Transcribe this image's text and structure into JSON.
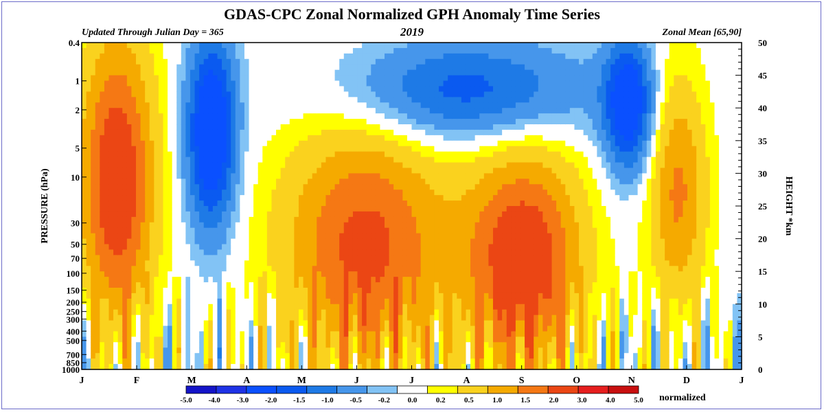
{
  "chart_data": {
    "type": "heatmap",
    "title": "GDAS-CPC Zonal Normalized GPH Anomaly Time Series",
    "subtitle_left": "Updated Through Julian Day = 365",
    "subtitle_center": "2019",
    "subtitle_right": "Zonal Mean [65,90]",
    "ylabel_left": "PRESSURE (hPa)",
    "ylabel_right": "HEIGHT *km",
    "x_ticks": [
      "J",
      "F",
      "M",
      "A",
      "M",
      "J",
      "J",
      "A",
      "S",
      "O",
      "N",
      "D",
      "J"
    ],
    "x_range_days": [
      1,
      365
    ],
    "y_scale": "log",
    "y_range_hpa": [
      0.4,
      1000
    ],
    "y_left_ticks": [
      "0.4",
      "1",
      "2",
      "5",
      "10",
      "30",
      "50",
      "70",
      "100",
      "150",
      "200",
      "250",
      "300",
      "400",
      "500",
      "700",
      "850",
      "1000"
    ],
    "y_right_ticks": [
      "0",
      "5",
      "10",
      "15",
      "20",
      "25",
      "30",
      "35",
      "40",
      "45",
      "50"
    ],
    "colorbar": {
      "unit": "normalized",
      "bins": [
        {
          "from": -5.0,
          "to": -4.0,
          "color": "#1414c8"
        },
        {
          "from": -4.0,
          "to": -3.0,
          "color": "#1e32e6"
        },
        {
          "from": -3.0,
          "to": -2.0,
          "color": "#0a50ff"
        },
        {
          "from": -2.0,
          "to": -1.5,
          "color": "#0a5af0"
        },
        {
          "from": -1.5,
          "to": -1.0,
          "color": "#1e7ae6"
        },
        {
          "from": -1.0,
          "to": -0.5,
          "color": "#4696eb"
        },
        {
          "from": -0.5,
          "to": -0.2,
          "color": "#82c3f5"
        },
        {
          "from": -0.2,
          "to": 0.2,
          "color": "#ffffff"
        },
        {
          "from": 0.2,
          "to": 0.5,
          "color": "#ffff00"
        },
        {
          "from": 0.5,
          "to": 1.0,
          "color": "#fad21e"
        },
        {
          "from": 1.0,
          "to": 1.5,
          "color": "#f5aa00"
        },
        {
          "from": 1.5,
          "to": 2.0,
          "color": "#f57814"
        },
        {
          "from": 2.0,
          "to": 3.0,
          "color": "#eb4614"
        },
        {
          "from": 3.0,
          "to": 4.0,
          "color": "#e61e1e"
        },
        {
          "from": 4.0,
          "to": 5.0,
          "color": "#c80f0f"
        }
      ],
      "labels": [
        "-5.0",
        "-4.0",
        "-3.0",
        "-2.0",
        "-1.5",
        "-1.0",
        "-0.5",
        "-0.2",
        "0.0",
        "0.2",
        "0.5",
        "1.0",
        "1.5",
        "2.0",
        "3.0",
        "4.0",
        "5.0"
      ]
    },
    "features": [
      {
        "start_day": 1,
        "end_day": 40,
        "top_hpa": 0.4,
        "bottom_hpa": 300,
        "peak": 2.6
      },
      {
        "start_day": 60,
        "end_day": 85,
        "top_hpa": 0.4,
        "bottom_hpa": 30,
        "peak": -3.0
      },
      {
        "start_day": 115,
        "end_day": 200,
        "top_hpa": 3,
        "bottom_hpa": 1000,
        "peak": 2.2
      },
      {
        "start_day": 215,
        "end_day": 275,
        "top_hpa": 6,
        "bottom_hpa": 1000,
        "peak": 2.6
      },
      {
        "start_day": 150,
        "end_day": 275,
        "top_hpa": 0.4,
        "bottom_hpa": 4,
        "peak": -1.8
      },
      {
        "start_day": 290,
        "end_day": 315,
        "top_hpa": 0.4,
        "bottom_hpa": 8,
        "peak": -2.6
      },
      {
        "start_day": 315,
        "end_day": 345,
        "top_hpa": 1,
        "bottom_hpa": 200,
        "peak": 1.6
      }
    ]
  }
}
